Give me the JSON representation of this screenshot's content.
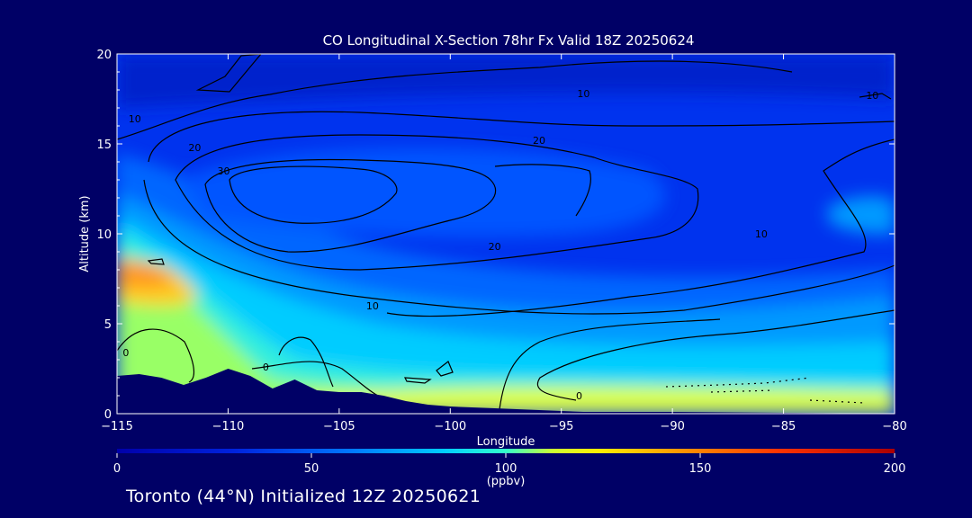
{
  "chart_data": {
    "type": "heatmap",
    "title": "CO Longitudinal X-Section 78hr  Fx Valid 18Z 20250624",
    "xlabel": "Longitude",
    "ylabel": "Altitude (km)",
    "xlim": [
      -115,
      -80
    ],
    "ylim": [
      0,
      20
    ],
    "x_ticks": [
      -115,
      -110,
      -105,
      -100,
      -95,
      -90,
      -85,
      -80
    ],
    "x_tick_labels": [
      "−115",
      "−110",
      "−105",
      "−100",
      "−95",
      "−90",
      "−85",
      "−80"
    ],
    "y_ticks": [
      0,
      5,
      10,
      15,
      20
    ],
    "y_tick_labels": [
      "0",
      "5",
      "10",
      "15",
      "20"
    ],
    "colorbar": {
      "label": "(ppbv)",
      "min": 0,
      "max": 200,
      "ticks": [
        0,
        50,
        100,
        150,
        200
      ],
      "tick_labels": [
        "0",
        "50",
        "100",
        "150",
        "200"
      ]
    },
    "contour_levels": [
      0,
      10,
      20,
      30
    ],
    "contour_labels": [
      {
        "text": "10",
        "x": -114.2,
        "y": 16.2
      },
      {
        "text": "20",
        "x": -111.5,
        "y": 14.6
      },
      {
        "text": "30",
        "x": -110.2,
        "y": 13.3
      },
      {
        "text": "10",
        "x": -94.0,
        "y": 17.6
      },
      {
        "text": "20",
        "x": -96.0,
        "y": 15.0
      },
      {
        "text": "20",
        "x": -98.0,
        "y": 9.1
      },
      {
        "text": "10",
        "x": -86.0,
        "y": 9.8
      },
      {
        "text": "10",
        "x": -81.0,
        "y": 17.5
      },
      {
        "text": "10",
        "x": -103.5,
        "y": 5.8
      },
      {
        "text": "0",
        "x": -108.3,
        "y": 2.4
      },
      {
        "text": "0",
        "x": -94.2,
        "y": 0.8
      },
      {
        "text": "0",
        "x": -114.6,
        "y": 3.2
      }
    ],
    "series": [
      {
        "values": [
          [
            -115,
            8.0,
            150
          ],
          [
            -114,
            7.2,
            140
          ],
          [
            -113,
            8.5,
            130
          ],
          [
            -112,
            7.5,
            128
          ],
          [
            -110,
            4.0,
            110
          ],
          [
            -105,
            3.0,
            105
          ],
          [
            -100,
            2.0,
            100
          ],
          [
            -95,
            1.0,
            100
          ],
          [
            -90,
            0.5,
            105
          ],
          [
            -85,
            1.0,
            85
          ],
          [
            -82,
            0.5,
            95
          ],
          [
            -105,
            12.0,
            45
          ],
          [
            -95,
            12.5,
            42
          ],
          [
            -85,
            11.0,
            50
          ],
          [
            -82,
            11.0,
            70
          ],
          [
            -80,
            18.0,
            30
          ]
        ]
      }
    ],
    "surface_terrain": [
      [
        -115,
        2.1
      ],
      [
        -114,
        2.2
      ],
      [
        -113,
        2.0
      ],
      [
        -112,
        1.6
      ],
      [
        -111,
        2.0
      ],
      [
        -110,
        2.5
      ],
      [
        -109,
        2.1
      ],
      [
        -108,
        1.4
      ],
      [
        -107,
        1.9
      ],
      [
        -106,
        1.3
      ],
      [
        -105,
        1.2
      ],
      [
        -104,
        1.2
      ],
      [
        -103,
        1.0
      ],
      [
        -102,
        0.7
      ],
      [
        -101,
        0.5
      ],
      [
        -100,
        0.4
      ],
      [
        -98,
        0.3
      ],
      [
        -96,
        0.2
      ],
      [
        -94,
        0.1
      ],
      [
        -90,
        0.1
      ],
      [
        -85,
        0.05
      ],
      [
        -80,
        0.0
      ]
    ]
  },
  "footer_text": "Toronto (44°N) Initialized 12Z 20250621",
  "colors": {
    "background": "#000066",
    "contour": "#000000",
    "axis": "#ffffff",
    "terrain": "#000066"
  }
}
